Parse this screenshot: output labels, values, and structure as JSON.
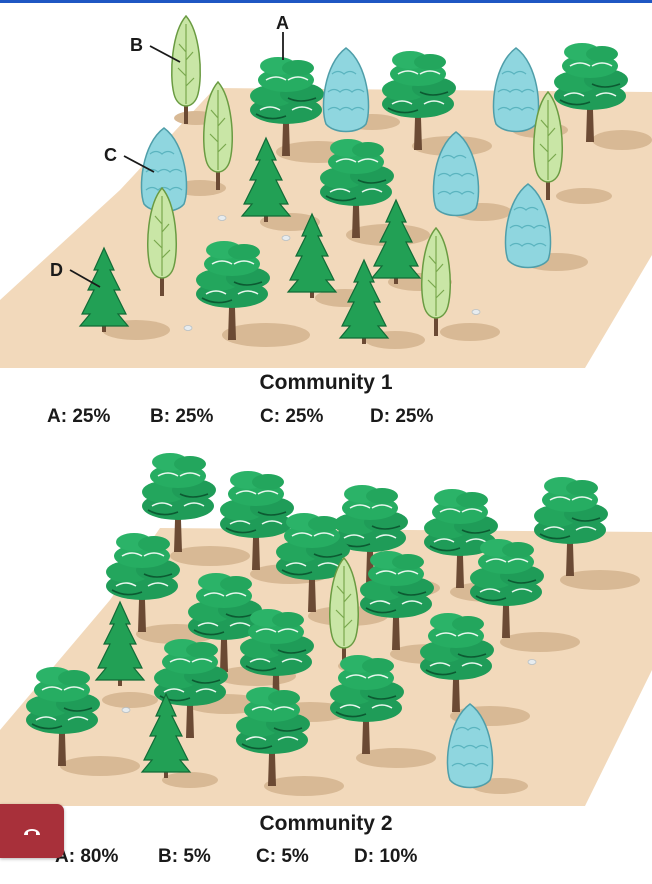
{
  "labels": {
    "a": "A",
    "b": "B",
    "c": "C",
    "d": "D"
  },
  "community1": {
    "title": "Community 1",
    "stats": [
      "A: 25%",
      "B: 25%",
      "C: 25%",
      "D: 25%"
    ]
  },
  "community2": {
    "title": "Community 2",
    "stats": [
      "A: 80%",
      "B: 5%",
      "C: 5%",
      "D: 10%"
    ]
  },
  "colors": {
    "ground": "#f2d9bb",
    "shadow": "#d8b995",
    "broadleaf": "#1f9c58",
    "poplar": "#c9e6a6",
    "spruce_blue": "#8fd6df",
    "fir": "#22a055",
    "trunk": "#6b4a34",
    "call_button": "#a8303a"
  },
  "icons": {
    "call_button": "hang-up-phone-icon"
  }
}
